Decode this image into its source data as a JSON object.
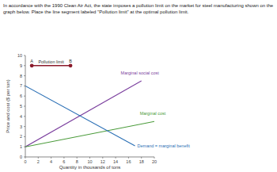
{
  "prompt": "In accordance with the 1990 Clean Air Act, the state imposes a pollution limit on the market for steel manufacturing shown on the graph below. Place the line segment labeled \"Pollution limit\" at the optimal pollution limit.",
  "chart_data": {
    "type": "line",
    "xlabel": "Quantity in thousands of tons",
    "ylabel": "Price and cost ($ per ton)",
    "xlim": [
      0,
      20
    ],
    "ylim": [
      0,
      10
    ],
    "xticks": [
      0,
      2,
      4,
      6,
      8,
      10,
      12,
      14,
      16,
      18,
      20
    ],
    "yticks": [
      0,
      1,
      2,
      3,
      4,
      5,
      6,
      7,
      8,
      9,
      10
    ],
    "grid": false,
    "series": [
      {
        "name": "Marginal social cost",
        "color": "#7b3f9e",
        "x": [
          0,
          18
        ],
        "values": [
          1,
          7.5
        ]
      },
      {
        "name": "Marginal cost",
        "color": "#4a9b3a",
        "x": [
          0,
          20
        ],
        "values": [
          1,
          3.5
        ]
      },
      {
        "name": "Demand = marginal benefit",
        "color": "#2a6fb5",
        "x": [
          0,
          17
        ],
        "values": [
          7,
          1.1
        ]
      },
      {
        "name": "Pollution limit",
        "color": "#8b1a2b",
        "marker": "circle",
        "x": [
          1,
          7
        ],
        "values": [
          9,
          9
        ],
        "point_labels": [
          "A",
          "B"
        ]
      }
    ]
  }
}
